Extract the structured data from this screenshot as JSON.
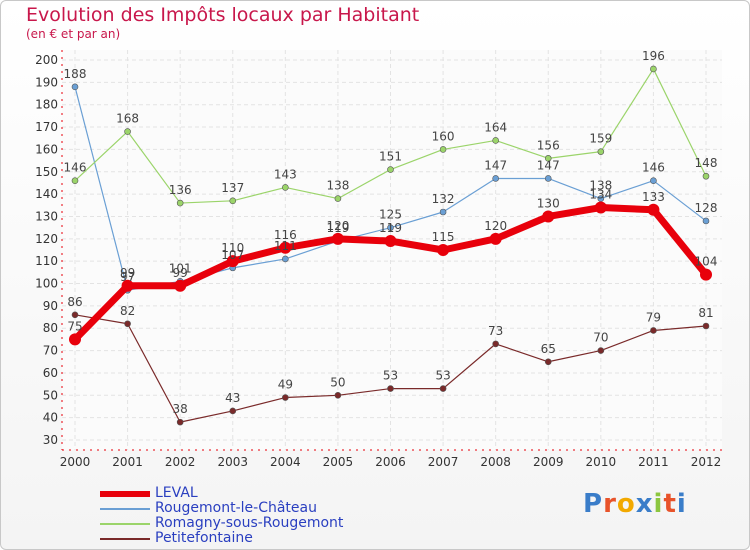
{
  "title": "Evolution des Impôts locaux par Habitant",
  "subtitle": "(en € et par an)",
  "logo": {
    "text": "Proxiti",
    "letters": [
      "P",
      "r",
      "o",
      "x",
      "i",
      "t",
      "i"
    ],
    "colors": [
      "#3a7dc9",
      "#e8532a",
      "#f2a900",
      "#3a7dc9",
      "#8cc63f",
      "#e8532a",
      "#3a7dc9"
    ]
  },
  "chart_data": {
    "type": "line",
    "title": "Evolution des Impôts locaux par Habitant",
    "subtitle": "(en € et par an)",
    "xlabel": "",
    "ylabel": "",
    "x": [
      "2000",
      "2001",
      "2002",
      "2003",
      "2004",
      "2005",
      "2006",
      "2007",
      "2008",
      "2009",
      "2010",
      "2011",
      "2012"
    ],
    "ylim": [
      30,
      200
    ],
    "yticks": [
      30,
      40,
      50,
      60,
      70,
      80,
      90,
      100,
      110,
      120,
      130,
      140,
      150,
      160,
      170,
      180,
      190,
      200
    ],
    "grid": true,
    "legend_position": "bottom-left",
    "series": [
      {
        "name": "LEVAL",
        "color": "#e8000b",
        "width": 7,
        "values": [
          75,
          99,
          99,
          110,
          116,
          120,
          119,
          115,
          120,
          130,
          134,
          133,
          104
        ]
      },
      {
        "name": "Rougemont-le-Château",
        "color": "#6a9fd4",
        "width": 1.2,
        "values": [
          188,
          97,
          101,
          107,
          111,
          119,
          125,
          132,
          147,
          147,
          138,
          146,
          128
        ]
      },
      {
        "name": "Romagny-sous-Rougemont",
        "color": "#9bd46a",
        "width": 1.2,
        "values": [
          146,
          168,
          136,
          137,
          143,
          138,
          151,
          160,
          164,
          156,
          159,
          196,
          148
        ]
      },
      {
        "name": "Petitefontaine",
        "color": "#7a2a2a",
        "width": 1.2,
        "values": [
          86,
          82,
          38,
          43,
          49,
          50,
          53,
          53,
          73,
          65,
          70,
          79,
          81
        ]
      }
    ]
  }
}
